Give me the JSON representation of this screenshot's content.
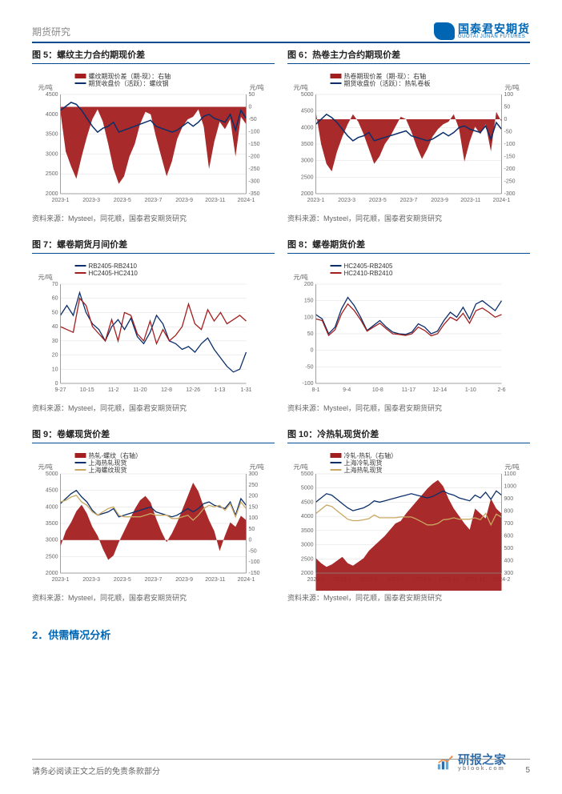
{
  "header": {
    "category": "期货研究",
    "logo_main": "国泰君安期货",
    "logo_sub": "GUOTAI JUNAN FUTURES"
  },
  "colors": {
    "brand_blue": "#0066b3",
    "dark_blue": "#0b2f6b",
    "red": "#a31f1f",
    "red_fill": "#a31f1f",
    "tan": "#c9a862",
    "grid": "#dcdcdc",
    "axis": "#888888",
    "bg": "#ffffff"
  },
  "charts": [
    {
      "id": "fig5",
      "title": "图 5：螺纹主力合约期现价差",
      "type": "line+area-dual-axis",
      "y_unit_left": "元/吨",
      "y_unit_right": "元/吨",
      "left_axis": {
        "min": 2000,
        "max": 4500,
        "step": 500
      },
      "right_axis": {
        "min": -350,
        "max": 50,
        "step": 50
      },
      "x_ticks": [
        "2023-1",
        "2023-3",
        "2023-5",
        "2023-7",
        "2023-9",
        "2023-11",
        "2024-1"
      ],
      "legend": [
        {
          "label": "螺纹期现价差（期-现）：右轴",
          "color": "#a31f1f",
          "kind": "area"
        },
        {
          "label": "期货收盘价（活跃）：螺纹钢",
          "color": "#0b2f6b",
          "kind": "line"
        }
      ],
      "series_area": [
        -20,
        -180,
        -240,
        -290,
        -200,
        -120,
        -50,
        -10,
        -60,
        -150,
        -250,
        -310,
        -280,
        -200,
        -150,
        -70,
        -20,
        -30,
        -120,
        -200,
        -280,
        -220,
        -130,
        -80,
        -50,
        -40,
        -10,
        -80,
        -250,
        -140,
        -60,
        -90,
        -50,
        -200,
        -40,
        -70
      ],
      "series_line": [
        4100,
        4200,
        4300,
        4250,
        4100,
        3900,
        3700,
        3550,
        3650,
        3700,
        3800,
        3550,
        3600,
        3650,
        3700,
        3750,
        3800,
        3850,
        3700,
        3650,
        3600,
        3550,
        3600,
        3700,
        3800,
        3700,
        3800,
        3950,
        4000,
        3900,
        3850,
        3800,
        4000,
        3600,
        4100,
        3900
      ],
      "source": "资料来源：Mysteel，同花顺，国泰君安期货研究"
    },
    {
      "id": "fig6",
      "title": "图 6：热卷主力合约期现价差",
      "type": "line+area-dual-axis",
      "y_unit_left": "元/吨",
      "y_unit_right": "元/吨",
      "left_axis": {
        "min": 2000,
        "max": 5000,
        "step": 500
      },
      "right_axis": {
        "min": -300,
        "max": 100,
        "step": 50
      },
      "x_ticks": [
        "2023-1",
        "2023-3",
        "2023-5",
        "2023-7",
        "2023-9",
        "2023-11",
        "2024-1"
      ],
      "legend": [
        {
          "label": "热卷期现价差（期-现）：右轴",
          "color": "#a31f1f",
          "kind": "area"
        },
        {
          "label": "期货收盘价（活跃）：热轧卷板",
          "color": "#0b2f6b",
          "kind": "line"
        }
      ],
      "series_area": [
        30,
        -100,
        -180,
        -210,
        -130,
        -70,
        -20,
        20,
        -10,
        -60,
        -120,
        -180,
        -150,
        -100,
        -70,
        -30,
        10,
        0,
        -50,
        -110,
        -160,
        -120,
        -70,
        -40,
        -20,
        -10,
        20,
        -40,
        -170,
        -90,
        -30,
        -60,
        -20,
        -130,
        30,
        -10
      ],
      "series_line": [
        4100,
        4250,
        4400,
        4300,
        4150,
        3950,
        3750,
        3600,
        3700,
        3750,
        3850,
        3600,
        3650,
        3700,
        3750,
        3800,
        3850,
        3900,
        3750,
        3700,
        3650,
        3600,
        3650,
        3750,
        3850,
        3750,
        3850,
        4000,
        4050,
        3950,
        3900,
        3850,
        4050,
        3650,
        4150,
        3950
      ],
      "source": "资料来源：Mysteel，同花顺，国泰君安期货研究"
    },
    {
      "id": "fig7",
      "title": "图 7：螺卷期货月间价差",
      "type": "multi-line",
      "y_unit_left": "元/吨",
      "left_axis": {
        "min": 0,
        "max": 70,
        "step": 10
      },
      "x_ticks": [
        "9-27",
        "10-15",
        "11-2",
        "11-20",
        "12-8",
        "12-26",
        "1-13",
        "1-31"
      ],
      "legend": [
        {
          "label": "RB2405-RB2410",
          "color": "#0b2f6b",
          "kind": "line"
        },
        {
          "label": "HC2405-HC2410",
          "color": "#a31f1f",
          "kind": "line"
        }
      ],
      "series_blue": [
        48,
        55,
        48,
        64,
        50,
        42,
        38,
        30,
        40,
        45,
        38,
        46,
        33,
        28,
        36,
        48,
        42,
        30,
        28,
        24,
        26,
        22,
        28,
        32,
        24,
        18,
        12,
        8,
        10,
        22
      ],
      "series_red": [
        40,
        38,
        36,
        60,
        55,
        40,
        35,
        30,
        45,
        30,
        50,
        48,
        35,
        30,
        44,
        28,
        38,
        30,
        34,
        40,
        56,
        42,
        38,
        52,
        44,
        50,
        42,
        45,
        48,
        44
      ],
      "source": "资料来源：Mysteel，同花顺，国泰君安期货研究"
    },
    {
      "id": "fig8",
      "title": "图 8：螺卷期货价差",
      "type": "multi-line",
      "y_unit_left": "元/吨",
      "left_axis": {
        "min": -100,
        "max": 200,
        "step": 50
      },
      "x_ticks": [
        "8-1",
        "9-4",
        "10-8",
        "11-17",
        "12-14",
        "1-10",
        "2-6"
      ],
      "legend": [
        {
          "label": "HC2405-RB2405",
          "color": "#0b2f6b",
          "kind": "line"
        },
        {
          "label": "HC2410-RB2410",
          "color": "#a31f1f",
          "kind": "line"
        }
      ],
      "series_blue": [
        108,
        95,
        50,
        70,
        125,
        160,
        135,
        100,
        60,
        75,
        90,
        70,
        55,
        50,
        48,
        55,
        80,
        70,
        50,
        58,
        90,
        115,
        100,
        130,
        95,
        140,
        150,
        135,
        120,
        150
      ],
      "series_red": [
        95,
        90,
        45,
        62,
        110,
        140,
        120,
        92,
        58,
        70,
        82,
        65,
        50,
        48,
        45,
        50,
        70,
        60,
        44,
        50,
        78,
        100,
        90,
        112,
        82,
        120,
        128,
        115,
        100,
        108
      ],
      "source": "资料来源：Mysteel，同花顺，国泰君安期货研究"
    },
    {
      "id": "fig9",
      "title": "图 9：卷螺现货价差",
      "type": "line+area-dual-axis",
      "y_unit_left": "元/吨",
      "y_unit_right": "元/吨",
      "left_axis": {
        "min": 2000,
        "max": 5000,
        "step": 500
      },
      "right_axis": {
        "min": -150,
        "max": 300,
        "step": 50
      },
      "x_ticks": [
        "2023-1",
        "2023-3",
        "2023-5",
        "2023-7",
        "2023-9",
        "2023-11",
        "2024-1"
      ],
      "legend": [
        {
          "label": "热轧-螺纹（右轴）",
          "color": "#a31f1f",
          "kind": "area"
        },
        {
          "label": "上海热轧现货",
          "color": "#0b2f6b",
          "kind": "line"
        },
        {
          "label": "上海螺纹现货",
          "color": "#c9a862",
          "kind": "line"
        }
      ],
      "series_area": [
        -30,
        40,
        80,
        130,
        160,
        120,
        60,
        20,
        -40,
        -90,
        -70,
        -10,
        40,
        90,
        140,
        180,
        200,
        170,
        100,
        40,
        -10,
        30,
        80,
        140,
        200,
        260,
        220,
        150,
        90,
        40,
        -50,
        20,
        80,
        60,
        110,
        90
      ],
      "series_line_blue": [
        4100,
        4250,
        4400,
        4500,
        4300,
        4150,
        3900,
        3750,
        3800,
        3850,
        3950,
        3700,
        3750,
        3800,
        3850,
        3900,
        3950,
        4000,
        3850,
        3800,
        3750,
        3700,
        3750,
        3850,
        3950,
        3850,
        3950,
        4100,
        4150,
        4050,
        4000,
        3950,
        4150,
        3750,
        4250,
        4050
      ],
      "series_line_tan": [
        4150,
        4200,
        4300,
        4350,
        4150,
        4050,
        3850,
        3750,
        3850,
        3950,
        4000,
        3750,
        3700,
        3700,
        3700,
        3700,
        3750,
        3800,
        3750,
        3750,
        3750,
        3650,
        3650,
        3700,
        3750,
        3600,
        3750,
        3950,
        4050,
        4000,
        4050,
        3900,
        4100,
        3700,
        4150,
        3950
      ],
      "source": "资料来源：Mysteel，同花顺，国泰君安期货研究"
    },
    {
      "id": "fig10",
      "title": "图 10：冷热轧现货价差",
      "type": "line+area-dual-axis",
      "y_unit_left": "元/吨",
      "y_unit_right": "元/吨",
      "left_axis": {
        "min": 2000,
        "max": 5500,
        "step": 500
      },
      "right_axis": {
        "min": 300,
        "max": 1100,
        "step": 100
      },
      "x_ticks": [
        "2023-1",
        "2023-3",
        "2023-5",
        "2023-7",
        "2023-9",
        "2023-10",
        "2023-12",
        "2024-2"
      ],
      "legend": [
        {
          "label": "冷轧-热轧（右轴）",
          "color": "#a31f1f",
          "kind": "area"
        },
        {
          "label": "上海冷轧现货",
          "color": "#0b2f6b",
          "kind": "line"
        },
        {
          "label": "上海热轧现货",
          "color": "#c9a862",
          "kind": "line"
        }
      ],
      "series_area": [
        420,
        380,
        350,
        370,
        400,
        430,
        380,
        360,
        390,
        420,
        480,
        520,
        560,
        600,
        650,
        700,
        720,
        780,
        830,
        880,
        930,
        980,
        1020,
        1050,
        1000,
        900,
        820,
        760,
        700,
        650,
        820,
        780,
        740,
        900,
        820,
        780
      ],
      "series_line_blue": [
        4500,
        4650,
        4800,
        4750,
        4600,
        4450,
        4300,
        4200,
        4250,
        4300,
        4400,
        4550,
        4500,
        4550,
        4600,
        4650,
        4700,
        4750,
        4800,
        4750,
        4700,
        4650,
        4700,
        4800,
        4900,
        4800,
        4750,
        4650,
        4600,
        4550,
        4750,
        4650,
        4850,
        4600,
        4900,
        4750
      ],
      "series_line_tan": [
        4100,
        4250,
        4400,
        4350,
        4200,
        4050,
        3900,
        3850,
        3850,
        3880,
        3920,
        4050,
        3950,
        3950,
        3950,
        3950,
        3980,
        3980,
        3980,
        3900,
        3800,
        3700,
        3700,
        3750,
        3880,
        3900,
        3950,
        3900,
        3900,
        3900,
        3950,
        3880,
        4100,
        3700,
        4080,
        3970
      ],
      "source": "资料来源：Mysteel，同花顺，国泰君安期货研究"
    }
  ],
  "section2": "2．供需情况分析",
  "footer": {
    "disclaimer": "请务必阅读正文之后的免责条款部分",
    "page": "5"
  },
  "watermark": {
    "name": "研报之家",
    "url": "yblook.com"
  }
}
